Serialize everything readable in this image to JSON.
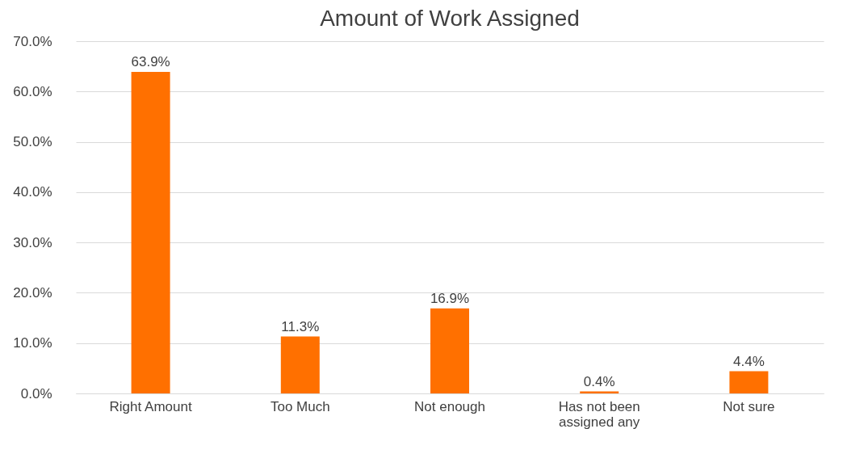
{
  "chart_data": {
    "type": "bar",
    "title": "Amount of Work Assigned",
    "categories": [
      "Right Amount",
      "Too Much",
      "Not enough",
      "Has not been assigned any",
      "Not sure"
    ],
    "values": [
      63.9,
      11.3,
      16.9,
      0.4,
      4.4
    ],
    "value_labels": [
      "63.9%",
      "11.3%",
      "16.9%",
      "0.4%",
      "4.4%"
    ],
    "color": "#ff7000",
    "ylim": [
      0,
      70
    ],
    "yticks": [
      {
        "value": 0,
        "label": "0.0%"
      },
      {
        "value": 10,
        "label": "10.0%"
      },
      {
        "value": 20,
        "label": "20.0%"
      },
      {
        "value": 30,
        "label": "30.0%"
      },
      {
        "value": 40,
        "label": "40.0%"
      },
      {
        "value": 50,
        "label": "50.0%"
      },
      {
        "value": 60,
        "label": "60.0%"
      },
      {
        "value": 70,
        "label": "70.0%"
      }
    ],
    "grid": "y"
  }
}
